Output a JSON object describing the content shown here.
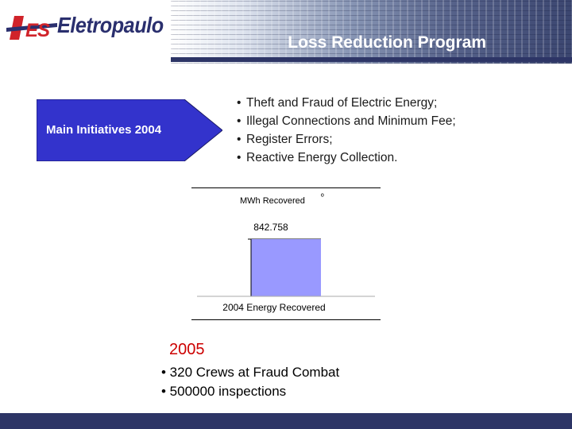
{
  "header": {
    "logo_text": "Eletropaulo",
    "logo_mark_text": "AES",
    "title": "Loss Reduction Program"
  },
  "main": {
    "arrow_label": "Main Initiatives 2004",
    "bullets": [
      "Theft and Fraud of Electric Energy;",
      "Illegal Connections and Minimum Fee;",
      "Register Errors;",
      "Reactive Energy Collection."
    ]
  },
  "chart_data": {
    "type": "bar",
    "title": "MWh Recovered",
    "title_mark": "º",
    "categories": [
      "2004 Energy Recovered"
    ],
    "values": [
      842758
    ],
    "data_labels": [
      "842.758"
    ],
    "bar_color": "#9999ff"
  },
  "plan_2005": {
    "year": "2005",
    "items": [
      "• 320 Crews at Fraud Combat",
      "• 500000 inspections"
    ]
  },
  "colors": {
    "navy": "#2d3566",
    "arrow_fill": "#3333cc",
    "accent_red": "#cc0000"
  }
}
